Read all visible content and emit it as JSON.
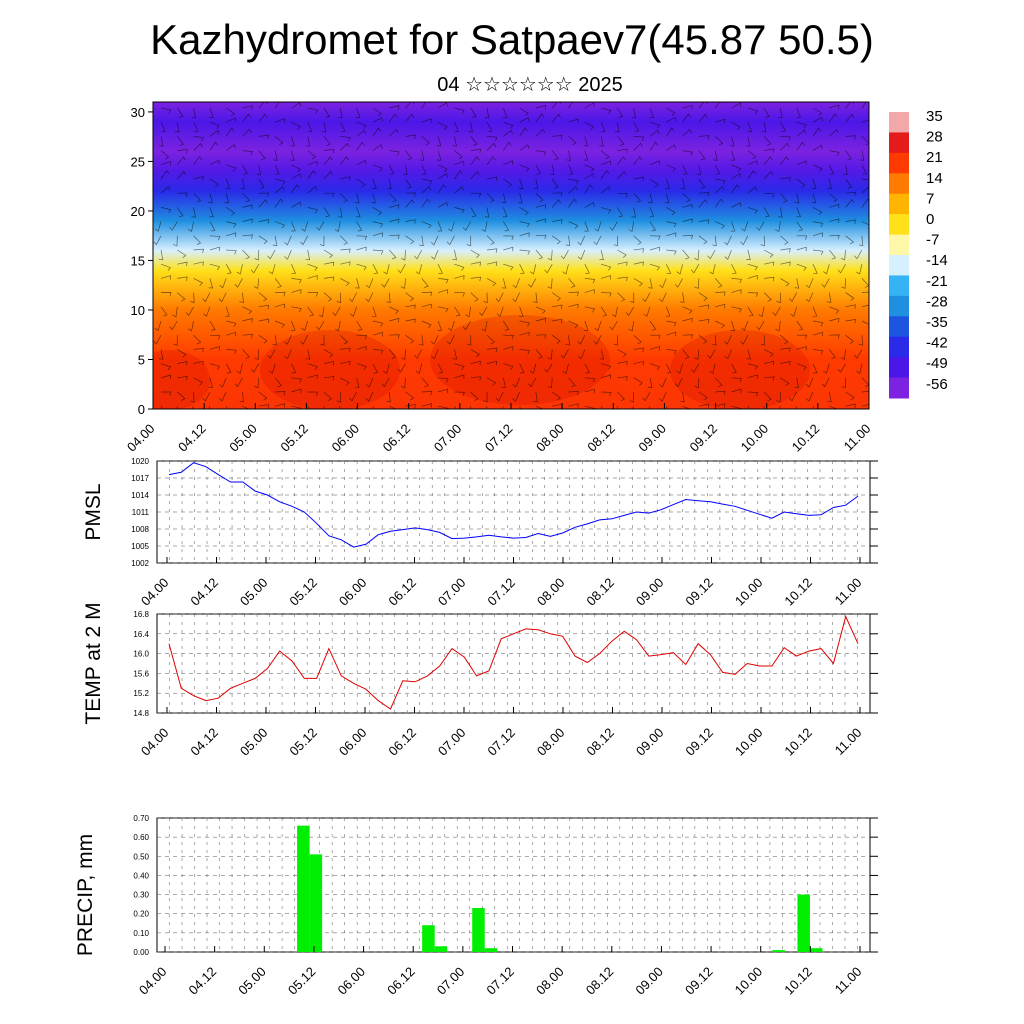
{
  "header": {
    "title": "Kazhydromet for Satpaev7(45.87 50.5)",
    "subtitle": "04 ☆☆☆☆☆☆ 2025"
  },
  "x_ticks": [
    "04.00",
    "04.12",
    "05.00",
    "05.12",
    "06.00",
    "06.12",
    "07.00",
    "07.12",
    "08.00",
    "08.12",
    "09.00",
    "09.12",
    "10.00",
    "10.12",
    "11.00"
  ],
  "chart_data": [
    {
      "type": "heatmap",
      "description_of_field": "cross-section temperature with wind barbs",
      "y_ticks": [
        "0",
        "5",
        "10",
        "15",
        "20",
        "25",
        "30"
      ],
      "ylim": [
        0,
        31
      ],
      "colorbar": {
        "labels": [
          "35",
          "28",
          "21",
          "14",
          "7",
          "0",
          "-7",
          "-14",
          "-21",
          "-28",
          "-35",
          "-42",
          "-49",
          "-56"
        ],
        "colors": [
          "#f2a8a8",
          "#e41b1b",
          "#ff3a00",
          "#ff7a00",
          "#ffb400",
          "#ffe11a",
          "#fff7a8",
          "#d7f0ff",
          "#36b3f5",
          "#1f8fe0",
          "#1e55e0",
          "#2a2ae8",
          "#4b17e8",
          "#7c22e0"
        ]
      },
      "rows_description": "by height",
      "profile": [
        {
          "h": 0,
          "t": 22
        },
        {
          "h": 5,
          "t": 21
        },
        {
          "h": 10,
          "t": 14
        },
        {
          "h": 14,
          "t": 0
        },
        {
          "h": 16,
          "t": -14
        },
        {
          "h": 19,
          "t": -28
        },
        {
          "h": 22,
          "t": -42
        },
        {
          "h": 24,
          "t": -50
        },
        {
          "h": 26,
          "t": -56
        },
        {
          "h": 29,
          "t": -49
        },
        {
          "h": 31,
          "t": -56
        }
      ]
    },
    {
      "type": "line",
      "ylabel": "PMSL",
      "y_ticks": [
        "1002",
        "1005",
        "1008",
        "1011",
        "1014",
        "1017",
        "1020"
      ],
      "ylim": [
        1002,
        1020
      ],
      "color": "#0000ff",
      "values": [
        1017.6,
        1018.0,
        1019.7,
        1019.0,
        1017.6,
        1016.3,
        1016.3,
        1014.7,
        1014.0,
        1012.8,
        1012.0,
        1011.0,
        1009.0,
        1006.8,
        1006.1,
        1004.8,
        1005.3,
        1007.0,
        1007.6,
        1007.9,
        1008.2,
        1007.9,
        1007.4,
        1006.3,
        1006.4,
        1006.6,
        1006.9,
        1006.6,
        1006.4,
        1006.5,
        1007.2,
        1006.7,
        1007.3,
        1008.3,
        1008.9,
        1009.6,
        1009.8,
        1010.4,
        1011.0,
        1010.8,
        1011.4,
        1012.3,
        1013.2,
        1013.0,
        1012.8,
        1012.4,
        1012.0,
        1011.3,
        1010.6,
        1009.9,
        1011.0,
        1010.7,
        1010.4,
        1010.5,
        1011.8,
        1012.2,
        1013.8
      ]
    },
    {
      "type": "line",
      "ylabel": "TEMP at 2 M",
      "y_ticks": [
        "14.8",
        "15.2",
        "15.6",
        "16.0",
        "16.4",
        "16.8"
      ],
      "ylim": [
        14.8,
        16.8
      ],
      "color": "#e00000",
      "values": [
        16.2,
        15.3,
        15.15,
        15.05,
        15.1,
        15.3,
        15.4,
        15.5,
        15.7,
        16.05,
        15.85,
        15.5,
        15.5,
        16.1,
        15.55,
        15.4,
        15.28,
        15.05,
        14.88,
        15.45,
        15.43,
        15.55,
        15.75,
        16.1,
        15.93,
        15.55,
        15.65,
        16.3,
        16.4,
        16.5,
        16.48,
        16.4,
        16.35,
        15.95,
        15.82,
        16.0,
        16.25,
        16.45,
        16.28,
        15.95,
        15.98,
        16.02,
        15.78,
        16.2,
        15.98,
        15.62,
        15.58,
        15.8,
        15.75,
        15.75,
        16.12,
        15.95,
        16.05,
        16.1,
        15.8,
        16.75,
        16.2
      ]
    },
    {
      "type": "bar",
      "ylabel": "PRECIP, mm",
      "y_ticks": [
        "0.00",
        "0.10",
        "0.20",
        "0.30",
        "0.40",
        "0.50",
        "0.60",
        "0.70"
      ],
      "ylim": [
        0,
        0.7
      ],
      "color": "#00ee00",
      "bars": [
        {
          "x": 11.5,
          "v": 0.66
        },
        {
          "x": 12.5,
          "v": 0.51
        },
        {
          "x": 21.5,
          "v": 0.14
        },
        {
          "x": 22.5,
          "v": 0.03
        },
        {
          "x": 25.5,
          "v": 0.23
        },
        {
          "x": 26.5,
          "v": 0.02
        },
        {
          "x": 49.5,
          "v": 0.01
        },
        {
          "x": 51.5,
          "v": 0.3
        },
        {
          "x": 52.5,
          "v": 0.02
        }
      ]
    }
  ]
}
